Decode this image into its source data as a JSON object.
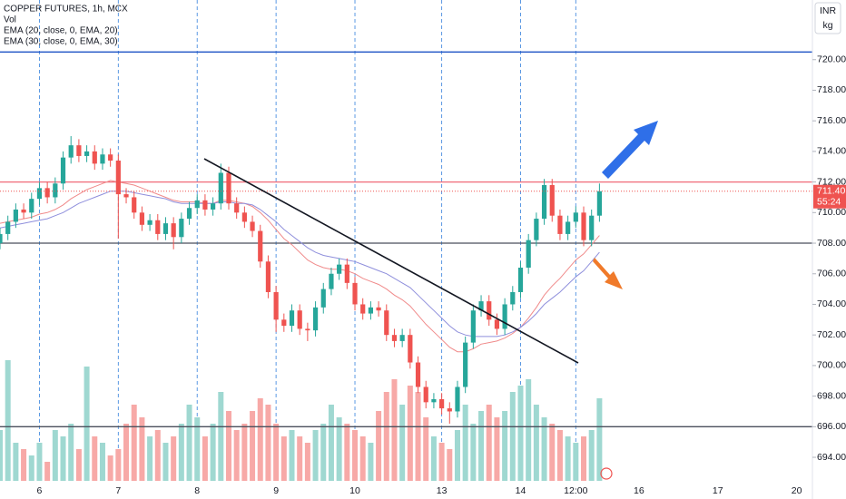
{
  "chart_data": {
    "type": "candlestick",
    "title": "COPPER FUTURES, 1h, MCX",
    "currency": "INR",
    "unit": "kg",
    "up_color": "#26a69a",
    "down_color": "#ef5350",
    "open": [
      708.0,
      708.6,
      709.4,
      710.2,
      710.0,
      710.9,
      711.6,
      711.0,
      711.9,
      713.6,
      714.4,
      713.7,
      714.0,
      713.2,
      713.8,
      713.4,
      711.2,
      711.0,
      710.0,
      709.2,
      709.5,
      708.6,
      709.3,
      708.4,
      709.6,
      710.3,
      710.8,
      710.2,
      710.6,
      712.6,
      710.6,
      710.0,
      709.4,
      708.8,
      706.8,
      704.8,
      703.0,
      702.6,
      703.6,
      702.4,
      702.3,
      703.8,
      705.0,
      706.0,
      706.6,
      705.4,
      704.0,
      703.4,
      703.8,
      703.6,
      702.0,
      701.6,
      702.0,
      700.2,
      698.6,
      697.6,
      697.8,
      697.2,
      697.0,
      698.6,
      701.5,
      703.6,
      704.2,
      703.0,
      702.4,
      704.0,
      704.8,
      706.4,
      708.2,
      709.6,
      711.8,
      709.8,
      708.6,
      709.4,
      710.0,
      708.2,
      709.8
    ],
    "high": [
      709.0,
      709.8,
      710.6,
      710.6,
      711.3,
      712.0,
      712.0,
      712.3,
      714.0,
      715.0,
      714.8,
      714.4,
      714.4,
      714.2,
      714.2,
      713.8,
      711.6,
      711.4,
      710.4,
      709.9,
      709.9,
      709.7,
      709.7,
      710.0,
      710.7,
      711.2,
      711.2,
      711.0,
      713.2,
      713.0,
      711.0,
      710.4,
      709.8,
      709.2,
      707.2,
      705.2,
      703.4,
      704.0,
      704.0,
      702.8,
      704.2,
      705.4,
      706.4,
      707.0,
      707.0,
      705.8,
      704.4,
      704.2,
      704.2,
      704.0,
      702.4,
      702.4,
      702.4,
      700.6,
      699.0,
      698.2,
      698.2,
      697.6,
      699.0,
      701.9,
      704.0,
      704.6,
      704.6,
      703.4,
      704.4,
      705.2,
      706.8,
      708.6,
      710.0,
      712.2,
      712.2,
      710.2,
      709.8,
      710.4,
      710.4,
      710.2,
      711.9
    ],
    "low": [
      707.6,
      708.2,
      709.0,
      709.6,
      709.6,
      710.5,
      710.6,
      710.6,
      711.5,
      713.2,
      713.3,
      713.3,
      712.8,
      712.8,
      713.0,
      708.3,
      710.6,
      709.6,
      708.8,
      708.8,
      708.2,
      708.2,
      707.6,
      708.0,
      709.2,
      709.9,
      709.8,
      709.8,
      710.2,
      710.2,
      709.6,
      709.0,
      708.4,
      706.4,
      704.4,
      702.2,
      702.2,
      702.2,
      702.0,
      701.6,
      701.9,
      703.4,
      704.6,
      705.6,
      705.0,
      703.6,
      703.0,
      703.0,
      703.2,
      701.6,
      701.2,
      701.2,
      699.8,
      698.2,
      697.2,
      697.2,
      696.8,
      696.2,
      696.6,
      698.2,
      701.1,
      703.2,
      702.6,
      702.0,
      702.0,
      703.6,
      704.4,
      706.0,
      707.8,
      709.2,
      709.4,
      708.2,
      708.2,
      709.0,
      707.8,
      707.8,
      709.4
    ],
    "close": [
      708.6,
      709.4,
      710.2,
      710.0,
      710.9,
      711.6,
      711.0,
      711.9,
      713.6,
      714.4,
      713.7,
      714.0,
      713.2,
      713.8,
      713.4,
      711.2,
      711.0,
      710.0,
      709.2,
      709.5,
      708.6,
      709.3,
      708.4,
      709.6,
      710.3,
      710.8,
      710.2,
      710.6,
      712.6,
      710.6,
      710.0,
      709.4,
      708.8,
      706.8,
      704.8,
      703.0,
      702.6,
      703.6,
      702.4,
      702.3,
      703.8,
      705.0,
      706.0,
      706.6,
      705.4,
      704.0,
      703.4,
      703.8,
      703.6,
      702.0,
      701.6,
      702.0,
      700.2,
      698.6,
      697.6,
      697.8,
      697.2,
      697.0,
      698.6,
      701.5,
      703.6,
      704.2,
      703.0,
      702.4,
      704.0,
      704.8,
      706.4,
      708.2,
      709.6,
      711.8,
      709.8,
      708.6,
      709.4,
      710.0,
      708.2,
      709.8,
      711.4
    ],
    "volume": {
      "name": "Vol",
      "up_color": "#9fd8d1",
      "down_color": "#f7a9a7",
      "ylim": [
        0,
        100
      ],
      "values": [
        40,
        95,
        30,
        25,
        20,
        30,
        15,
        40,
        35,
        45,
        25,
        90,
        35,
        30,
        20,
        25,
        45,
        60,
        50,
        35,
        40,
        30,
        35,
        45,
        60,
        50,
        35,
        45,
        70,
        55,
        40,
        45,
        55,
        65,
        60,
        45,
        35,
        40,
        35,
        30,
        40,
        45,
        60,
        50,
        45,
        40,
        35,
        30,
        55,
        70,
        80,
        60,
        75,
        70,
        50,
        35,
        30,
        25,
        40,
        60,
        45,
        55,
        60,
        50,
        55,
        70,
        75,
        80,
        60,
        50,
        45,
        40,
        35,
        30,
        35,
        40,
        65
      ]
    },
    "series": [
      {
        "name": "EMA (20, close, 0, EMA, 20)",
        "color": "#f08a8a",
        "values": [
          709.3,
          709.4,
          709.5,
          709.6,
          709.7,
          709.9,
          710.0,
          710.2,
          710.5,
          710.9,
          711.2,
          711.5,
          711.7,
          711.9,
          712.1,
          712.0,
          711.9,
          711.8,
          711.6,
          711.4,
          711.2,
          711.0,
          710.8,
          710.7,
          710.7,
          710.7,
          710.6,
          710.6,
          710.8,
          710.8,
          710.7,
          710.6,
          710.4,
          710.0,
          709.5,
          708.9,
          708.3,
          707.9,
          707.4,
          706.9,
          706.6,
          706.4,
          706.3,
          706.3,
          706.2,
          706.0,
          705.7,
          705.5,
          705.3,
          705.0,
          704.6,
          704.3,
          703.9,
          703.3,
          702.7,
          702.2,
          701.7,
          701.2,
          700.9,
          700.9,
          701.1,
          701.4,
          701.5,
          701.6,
          701.8,
          702.1,
          702.5,
          703.1,
          703.8,
          704.6,
          705.2,
          705.7,
          706.3,
          706.9,
          707.3,
          707.9,
          708.5
        ]
      },
      {
        "name": "EMA (30, close, 0, EMA, 30)",
        "color": "#8f8fdc",
        "values": [
          709.0,
          709.1,
          709.2,
          709.3,
          709.4,
          709.5,
          709.6,
          709.8,
          710.0,
          710.3,
          710.6,
          710.8,
          711.0,
          711.2,
          711.4,
          711.4,
          711.4,
          711.3,
          711.2,
          711.1,
          711.0,
          710.9,
          710.7,
          710.6,
          710.6,
          710.6,
          710.6,
          710.6,
          710.7,
          710.7,
          710.6,
          710.6,
          710.5,
          710.2,
          709.8,
          709.4,
          708.9,
          708.5,
          708.1,
          707.7,
          707.4,
          707.2,
          707.1,
          707.0,
          706.9,
          706.8,
          706.6,
          706.4,
          706.2,
          706.0,
          705.7,
          705.4,
          705.1,
          704.6,
          704.1,
          703.6,
          703.1,
          702.6,
          702.2,
          702.0,
          701.9,
          701.9,
          701.9,
          701.9,
          702.0,
          702.2,
          702.5,
          702.9,
          703.4,
          704.0,
          704.4,
          704.8,
          705.3,
          705.8,
          706.2,
          706.8,
          707.4
        ]
      }
    ],
    "hlines": [
      {
        "value": 720.5,
        "color": "#1e53c5"
      },
      {
        "value": 712.0,
        "color": "#f06a78"
      },
      {
        "value": 708.0,
        "color": "#4a4f5c"
      },
      {
        "value": 696.0,
        "color": "#4a4f5c"
      }
    ],
    "last_price": {
      "value": 711.4,
      "label": "711.40"
    },
    "countdown": "55:24",
    "xlim": [
      0,
      103
    ],
    "xticks": [
      {
        "value": 5,
        "label": "6"
      },
      {
        "value": 15,
        "label": "7"
      },
      {
        "value": 25,
        "label": "8"
      },
      {
        "value": 35,
        "label": "9"
      },
      {
        "value": 45,
        "label": "10"
      },
      {
        "value": 56,
        "label": "13"
      },
      {
        "value": 66,
        "label": "14"
      },
      {
        "value": 73,
        "label": "12:00"
      },
      {
        "value": 81,
        "label": "16"
      },
      {
        "value": 91,
        "label": "17"
      },
      {
        "value": 101,
        "label": "20"
      }
    ],
    "ylim": [
      692.46,
      723.9
    ],
    "yticks": [
      {
        "value": 694,
        "label": "694.00"
      },
      {
        "value": 696,
        "label": "696.00"
      },
      {
        "value": 698,
        "label": "698.00"
      },
      {
        "value": 700,
        "label": "700.00"
      },
      {
        "value": 702,
        "label": "702.00"
      },
      {
        "value": 704,
        "label": "704.00"
      },
      {
        "value": 706,
        "label": "706.00"
      },
      {
        "value": 708,
        "label": "708.00"
      },
      {
        "value": 710,
        "label": "710.00"
      },
      {
        "value": 712,
        "label": "712.00"
      },
      {
        "value": 714,
        "label": "714.00"
      },
      {
        "value": 716,
        "label": "716.00"
      },
      {
        "value": 718,
        "label": "718.00"
      },
      {
        "value": 720,
        "label": "720.00"
      }
    ]
  }
}
